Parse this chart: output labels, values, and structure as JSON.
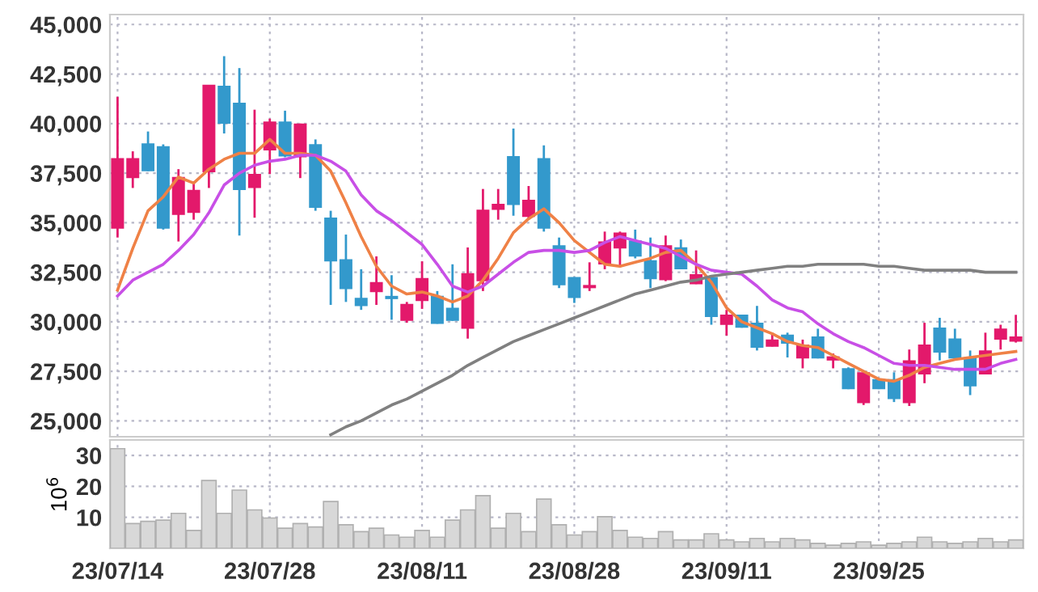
{
  "chart_data": [
    {
      "type": "candlestick",
      "categories": [
        null,
        null,
        null,
        null,
        null,
        null,
        null,
        null,
        null,
        null,
        null,
        null,
        null,
        null,
        null,
        null,
        null,
        null,
        null,
        null,
        null,
        null,
        null,
        null,
        null,
        null,
        null,
        null,
        null,
        null,
        null,
        null,
        null,
        null,
        null,
        null,
        null,
        null,
        null,
        null,
        null,
        null,
        null,
        null,
        null,
        null,
        null,
        null,
        null,
        null,
        null,
        null,
        null,
        null,
        null,
        null,
        null,
        null,
        null,
        null
      ],
      "ohlc": [
        [
          34750,
          41350,
          34250,
          38200
        ],
        [
          37300,
          38600,
          36750,
          38200
        ],
        [
          38950,
          39600,
          37600,
          37650
        ],
        [
          38800,
          38950,
          34650,
          34750
        ],
        [
          35450,
          37700,
          34050,
          37250
        ],
        [
          35550,
          37000,
          35150,
          36600
        ],
        [
          37600,
          41950,
          36750,
          41900
        ],
        [
          41850,
          43400,
          39500,
          40050
        ],
        [
          41000,
          42800,
          34350,
          36700
        ],
        [
          36800,
          40700,
          35250,
          37400
        ],
        [
          38700,
          40250,
          37450,
          40050
        ],
        [
          40050,
          40650,
          38300,
          38400
        ],
        [
          38350,
          40000,
          37250,
          39950
        ],
        [
          38900,
          39200,
          35600,
          35800
        ],
        [
          35200,
          35600,
          30850,
          33100
        ],
        [
          33100,
          34400,
          31000,
          31700
        ],
        [
          31150,
          32650,
          30600,
          30850
        ],
        [
          31550,
          33300,
          30850,
          31950
        ],
        [
          31250,
          32350,
          30100,
          31200
        ],
        [
          30100,
          31000,
          29950,
          30850
        ],
        [
          31100,
          33050,
          30650,
          32150
        ],
        [
          31250,
          31550,
          29900,
          29950
        ],
        [
          30650,
          32900,
          30050,
          30100
        ],
        [
          29700,
          33750,
          29150,
          32400
        ],
        [
          32100,
          36700,
          31550,
          35600
        ],
        [
          35700,
          36700,
          35150,
          35900
        ],
        [
          38300,
          39750,
          35350,
          35950
        ],
        [
          35350,
          36850,
          35150,
          36100
        ],
        [
          38200,
          38900,
          34550,
          34750
        ],
        [
          33800,
          34250,
          31700,
          31900
        ],
        [
          32200,
          32250,
          30950,
          31250
        ],
        [
          31750,
          33000,
          31550,
          31800
        ],
        [
          32950,
          34550,
          32650,
          34000
        ],
        [
          33750,
          34550,
          32750,
          34450
        ],
        [
          34050,
          34650,
          33200,
          33350
        ],
        [
          33050,
          34250,
          31700,
          32200
        ],
        [
          32150,
          34350,
          32050,
          33800
        ],
        [
          33700,
          34150,
          32650,
          32700
        ],
        [
          31950,
          33600,
          31900,
          32350
        ],
        [
          32200,
          32350,
          29850,
          30300
        ],
        [
          29900,
          30600,
          29300,
          30300
        ],
        [
          30300,
          30350,
          29700,
          29750
        ],
        [
          29900,
          30800,
          28550,
          28750
        ],
        [
          28800,
          29450,
          28750,
          29050
        ],
        [
          29300,
          29450,
          28200,
          28950
        ],
        [
          28200,
          29100,
          27650,
          28800
        ],
        [
          29200,
          29650,
          28150,
          28200
        ],
        [
          28100,
          28400,
          27650,
          28200
        ],
        [
          27600,
          27700,
          26600,
          26650
        ],
        [
          25950,
          27450,
          25800,
          27400
        ],
        [
          27050,
          27150,
          26600,
          26650
        ],
        [
          27050,
          27450,
          25950,
          26150
        ],
        [
          25950,
          28600,
          25750,
          28000
        ],
        [
          27400,
          29950,
          26900,
          28800
        ],
        [
          29650,
          30200,
          28050,
          28500
        ],
        [
          29100,
          29650,
          28100,
          28200
        ],
        [
          28150,
          28550,
          26300,
          26800
        ],
        [
          27400,
          29450,
          27350,
          28500
        ],
        [
          29150,
          29850,
          28600,
          29600
        ],
        [
          29050,
          30350,
          28950,
          29200
        ]
      ],
      "colors": [
        "#e3196b",
        "#e3196b",
        "#3399cc",
        "#3399cc",
        "#e3196b",
        "#e3196b",
        "#e3196b",
        "#3399cc",
        "#3399cc",
        "#e3196b",
        "#e3196b",
        "#3399cc",
        "#e3196b",
        "#3399cc",
        "#3399cc",
        "#3399cc",
        "#3399cc",
        "#e3196b",
        "#3399cc",
        "#e3196b",
        "#e3196b",
        "#3399cc",
        "#3399cc",
        "#e3196b",
        "#e3196b",
        "#e3196b",
        "#3399cc",
        "#e3196b",
        "#3399cc",
        "#3399cc",
        "#3399cc",
        "#e3196b",
        "#e3196b",
        "#e3196b",
        "#3399cc",
        "#3399cc",
        "#e3196b",
        "#3399cc",
        "#e3196b",
        "#3399cc",
        "#e3196b",
        "#3399cc",
        "#3399cc",
        "#e3196b",
        "#3399cc",
        "#e3196b",
        "#3399cc",
        "#e3196b",
        "#3399cc",
        "#e3196b",
        "#3399cc",
        "#3399cc",
        "#e3196b",
        "#e3196b",
        "#3399cc",
        "#3399cc",
        "#3399cc",
        "#e3196b",
        "#e3196b",
        "#e3196b"
      ],
      "series": [
        {
          "type": "line",
          "color": "#ef8146",
          "values": [
            31600,
            33700,
            35600,
            36300,
            37300,
            37000,
            37700,
            38200,
            38500,
            38500,
            39200,
            38500,
            38500,
            38400,
            37600,
            36000,
            34300,
            32800,
            31800,
            31400,
            31500,
            31300,
            31000,
            31300,
            32100,
            33200,
            34500,
            35200,
            35700,
            35000,
            34100,
            33500,
            32900,
            32800,
            33000,
            33200,
            33500,
            33600,
            32900,
            32000,
            30700,
            30000,
            29700,
            29400,
            29000,
            28800,
            28700,
            28300,
            27900,
            27500,
            27100,
            27000,
            27300,
            27700,
            27900,
            28100,
            28200,
            28300,
            28400,
            28500
          ]
        },
        {
          "type": "line",
          "color": "#c84fe6",
          "values": [
            31300,
            32100,
            32500,
            32900,
            33600,
            34400,
            35500,
            36900,
            37500,
            37900,
            38100,
            38200,
            38400,
            38400,
            38100,
            37600,
            36400,
            35600,
            35100,
            34500,
            33900,
            32900,
            31800,
            31500,
            31800,
            32400,
            33000,
            33500,
            33600,
            33600,
            33500,
            33600,
            34000,
            34300,
            34100,
            33900,
            33700,
            33300,
            32900,
            32600,
            32500,
            32400,
            31800,
            31100,
            30700,
            30500,
            29900,
            29400,
            29000,
            28700,
            28300,
            27900,
            27800,
            27800,
            27700,
            27600,
            27600,
            27600,
            27900,
            28100
          ]
        },
        {
          "type": "line",
          "color": "#808080",
          "values": [
            null,
            null,
            null,
            null,
            null,
            null,
            null,
            null,
            null,
            null,
            null,
            null,
            null,
            null,
            24300,
            24700,
            25000,
            25400,
            25800,
            26100,
            26500,
            26900,
            27300,
            27800,
            28200,
            28600,
            29000,
            29300,
            29600,
            29900,
            30200,
            30500,
            30800,
            31100,
            31400,
            31600,
            31800,
            32000,
            32100,
            32300,
            32400,
            32500,
            32600,
            32700,
            32800,
            32800,
            32900,
            32900,
            32900,
            32900,
            32800,
            32800,
            32700,
            32600,
            32600,
            32600,
            32600,
            32500,
            32500,
            32500
          ]
        }
      ],
      "ylim": [
        24200,
        45500
      ],
      "yticks": [
        {
          "value": 25000,
          "label": "25,000"
        },
        {
          "value": 27500,
          "label": "27,500"
        },
        {
          "value": 30000,
          "label": "30,000"
        },
        {
          "value": 32500,
          "label": "32,500"
        },
        {
          "value": 35000,
          "label": "35,000"
        },
        {
          "value": 37500,
          "label": "37,500"
        },
        {
          "value": 40000,
          "label": "40,000"
        },
        {
          "value": 42500,
          "label": "42,500"
        },
        {
          "value": 45000,
          "label": "45,000"
        }
      ],
      "grid": true,
      "tick_labels": "y"
    },
    {
      "type": "bar",
      "categories": [
        "23/07/14",
        null,
        null,
        null,
        null,
        null,
        null,
        null,
        null,
        null,
        "23/07/28",
        null,
        null,
        null,
        null,
        null,
        null,
        null,
        null,
        null,
        "23/08/11",
        null,
        null,
        null,
        null,
        null,
        null,
        null,
        null,
        null,
        "23/08/28",
        null,
        null,
        null,
        null,
        null,
        null,
        null,
        null,
        null,
        "23/09/11",
        null,
        null,
        null,
        null,
        null,
        null,
        null,
        null,
        null,
        "23/09/25",
        null,
        null,
        null,
        null,
        null,
        null,
        null,
        null,
        null
      ],
      "values": [
        32.2,
        8.0,
        8.7,
        9.1,
        11.3,
        5.8,
        21.9,
        11.3,
        18.8,
        12.4,
        9.8,
        6.5,
        8.0,
        6.9,
        15.1,
        7.6,
        5.4,
        6.5,
        4.3,
        3.6,
        5.8,
        3.6,
        9.1,
        12.4,
        17.0,
        6.5,
        11.3,
        5.4,
        15.9,
        7.6,
        4.3,
        5.4,
        10.2,
        5.8,
        3.6,
        3.2,
        5.4,
        2.7,
        2.7,
        4.7,
        2.7,
        2.1,
        3.2,
        2.1,
        3.2,
        2.7,
        1.6,
        1.0,
        1.6,
        2.1,
        1.0,
        1.6,
        2.1,
        3.6,
        2.1,
        1.6,
        2.1,
        3.2,
        2.1,
        2.7
      ],
      "color": "#d8d8d8",
      "ylabel": "10$^{6}$",
      "ylim": [
        0,
        35
      ],
      "yticks": [
        10,
        20,
        30
      ],
      "grid": true
    }
  ]
}
